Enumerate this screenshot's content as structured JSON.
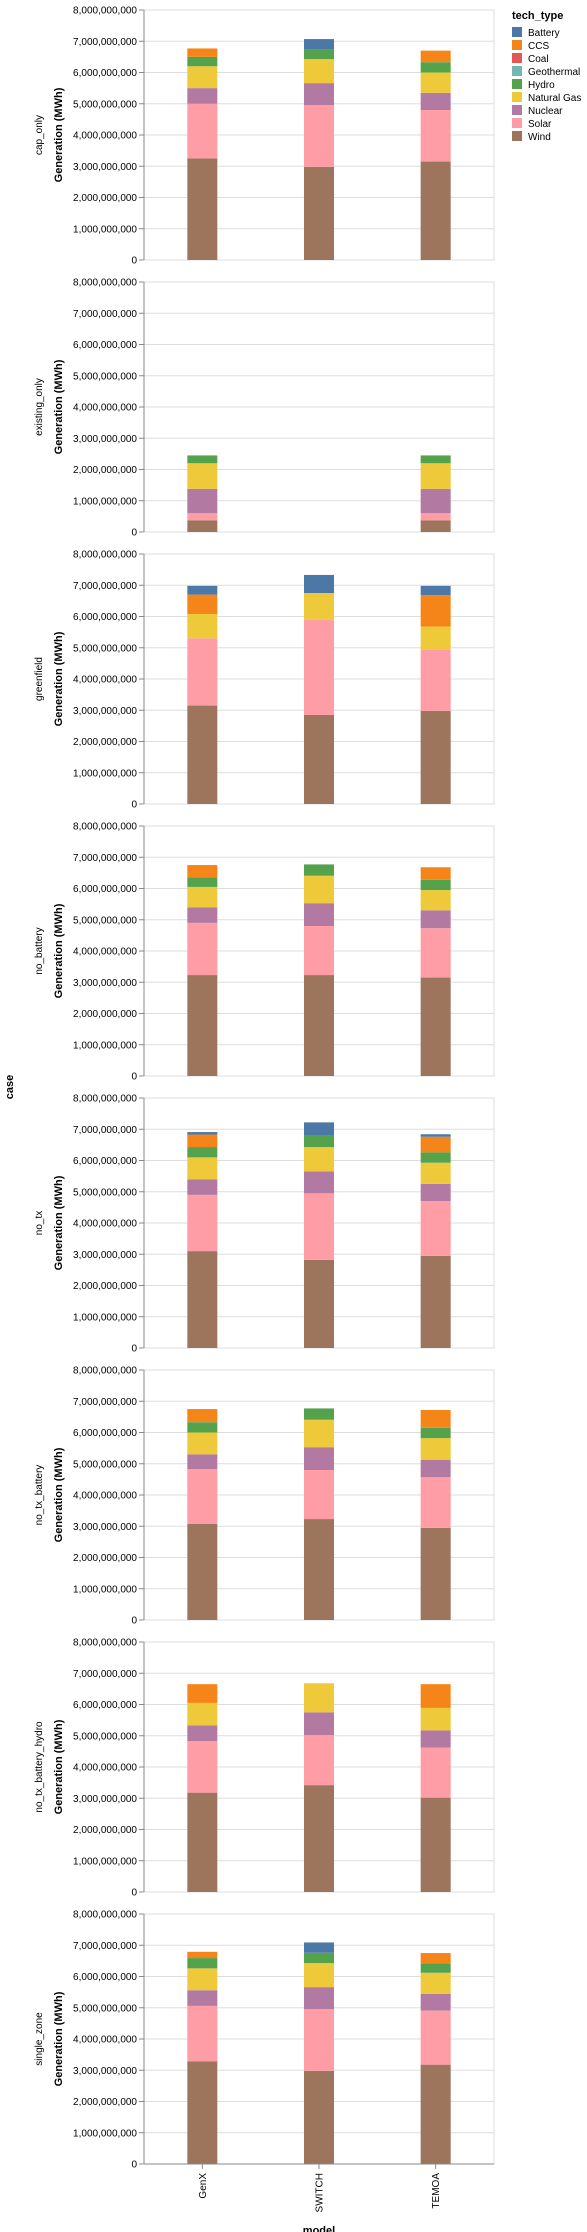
{
  "chart_data": {
    "type": "bar",
    "stacked": true,
    "facet_title": "case",
    "x_title": "model",
    "y_title": "Generation (MWh)",
    "models": [
      "GenX",
      "SWITCH",
      "TEMOA"
    ],
    "ylim": [
      0,
      8000000000
    ],
    "y_ticks": [
      0,
      1000000000,
      2000000000,
      3000000000,
      4000000000,
      5000000000,
      6000000000,
      7000000000,
      8000000000
    ],
    "y_tick_labels": [
      "0",
      "1,000,000,000",
      "2,000,000,000",
      "3,000,000,000",
      "4,000,000,000",
      "5,000,000,000",
      "6,000,000,000",
      "7,000,000,000",
      "8,000,000,000"
    ],
    "grid": true,
    "legend": {
      "title": "tech_type",
      "position": "top-right",
      "items": [
        {
          "name": "Battery",
          "color": "#4c78a8"
        },
        {
          "name": "CCS",
          "color": "#f58518"
        },
        {
          "name": "Coal",
          "color": "#e45756"
        },
        {
          "name": "Geothermal",
          "color": "#72b7b2"
        },
        {
          "name": "Hydro",
          "color": "#54a24b"
        },
        {
          "name": "Natural Gas",
          "color": "#eeca3b"
        },
        {
          "name": "Nuclear",
          "color": "#b279a2"
        },
        {
          "name": "Solar",
          "color": "#ff9da6"
        },
        {
          "name": "Wind",
          "color": "#9d755d"
        }
      ]
    },
    "stack_order": [
      "Wind",
      "Solar",
      "Nuclear",
      "Natural Gas",
      "Geothermal",
      "Hydro",
      "Coal",
      "CCS",
      "Battery"
    ],
    "facets": [
      {
        "case": "cap_only",
        "bars": [
          {
            "model": "GenX",
            "values": {
              "Wind": 3250000000,
              "Solar": 1750000000,
              "Nuclear": 500000000,
              "Natural Gas": 700000000,
              "Hydro": 300000000,
              "CCS": 270000000,
              "Battery": 0
            }
          },
          {
            "model": "SWITCH",
            "values": {
              "Wind": 2980000000,
              "Solar": 1980000000,
              "Nuclear": 700000000,
              "Natural Gas": 770000000,
              "Hydro": 320000000,
              "CCS": 0,
              "Battery": 320000000
            }
          },
          {
            "model": "TEMOA",
            "values": {
              "Wind": 3150000000,
              "Solar": 1650000000,
              "Nuclear": 550000000,
              "Natural Gas": 650000000,
              "Hydro": 330000000,
              "CCS": 370000000,
              "Battery": 0
            }
          }
        ]
      },
      {
        "case": "existing_only",
        "bars": [
          {
            "model": "GenX",
            "values": {
              "Wind": 370000000,
              "Solar": 230000000,
              "Nuclear": 780000000,
              "Natural Gas": 820000000,
              "Hydro": 250000000,
              "CCS": 0,
              "Battery": 0
            }
          },
          {
            "model": "SWITCH",
            "values": {}
          },
          {
            "model": "TEMOA",
            "values": {
              "Wind": 370000000,
              "Solar": 230000000,
              "Nuclear": 780000000,
              "Natural Gas": 820000000,
              "Hydro": 250000000,
              "CCS": 0,
              "Battery": 0
            }
          }
        ]
      },
      {
        "case": "greenfield",
        "bars": [
          {
            "model": "GenX",
            "values": {
              "Wind": 3150000000,
              "Solar": 2150000000,
              "Nuclear": 0,
              "Natural Gas": 780000000,
              "Hydro": 0,
              "CCS": 620000000,
              "Battery": 280000000
            }
          },
          {
            "model": "SWITCH",
            "values": {
              "Wind": 2850000000,
              "Solar": 3050000000,
              "Nuclear": 0,
              "Natural Gas": 850000000,
              "Hydro": 0,
              "CCS": 0,
              "Battery": 580000000
            }
          },
          {
            "model": "TEMOA",
            "values": {
              "Wind": 2980000000,
              "Solar": 1950000000,
              "Nuclear": 0,
              "Natural Gas": 750000000,
              "Hydro": 0,
              "CCS": 1000000000,
              "Battery": 300000000
            }
          }
        ]
      },
      {
        "case": "no_battery",
        "bars": [
          {
            "model": "GenX",
            "values": {
              "Wind": 3230000000,
              "Solar": 1670000000,
              "Nuclear": 500000000,
              "Natural Gas": 650000000,
              "Hydro": 300000000,
              "CCS": 400000000,
              "Battery": 0
            }
          },
          {
            "model": "SWITCH",
            "values": {
              "Wind": 3230000000,
              "Solar": 1570000000,
              "Nuclear": 730000000,
              "Natural Gas": 880000000,
              "Hydro": 360000000,
              "CCS": 0,
              "Battery": 0
            }
          },
          {
            "model": "TEMOA",
            "values": {
              "Wind": 3150000000,
              "Solar": 1580000000,
              "Nuclear": 570000000,
              "Natural Gas": 650000000,
              "Hydro": 330000000,
              "CCS": 400000000,
              "Battery": 0
            }
          }
        ]
      },
      {
        "case": "no_tx",
        "bars": [
          {
            "model": "GenX",
            "values": {
              "Wind": 3100000000,
              "Solar": 1800000000,
              "Nuclear": 500000000,
              "Natural Gas": 700000000,
              "Hydro": 330000000,
              "CCS": 400000000,
              "Battery": 80000000
            }
          },
          {
            "model": "SWITCH",
            "values": {
              "Wind": 2820000000,
              "Solar": 2130000000,
              "Nuclear": 700000000,
              "Natural Gas": 780000000,
              "Hydro": 360000000,
              "CCS": 0,
              "Battery": 430000000
            }
          },
          {
            "model": "TEMOA",
            "values": {
              "Wind": 2950000000,
              "Solar": 1750000000,
              "Nuclear": 550000000,
              "Natural Gas": 680000000,
              "Hydro": 330000000,
              "CCS": 500000000,
              "Battery": 80000000
            }
          }
        ]
      },
      {
        "case": "no_tx_battery",
        "bars": [
          {
            "model": "GenX",
            "values": {
              "Wind": 3080000000,
              "Solar": 1750000000,
              "Nuclear": 470000000,
              "Natural Gas": 700000000,
              "Hydro": 330000000,
              "CCS": 420000000,
              "Battery": 0
            }
          },
          {
            "model": "SWITCH",
            "values": {
              "Wind": 3230000000,
              "Solar": 1570000000,
              "Nuclear": 730000000,
              "Natural Gas": 880000000,
              "Hydro": 360000000,
              "CCS": 0,
              "Battery": 0
            }
          },
          {
            "model": "TEMOA",
            "values": {
              "Wind": 2950000000,
              "Solar": 1620000000,
              "Nuclear": 550000000,
              "Natural Gas": 700000000,
              "Hydro": 330000000,
              "CCS": 570000000,
              "Battery": 0
            }
          }
        ]
      },
      {
        "case": "no_tx_battery_hydro",
        "bars": [
          {
            "model": "GenX",
            "values": {
              "Wind": 3180000000,
              "Solar": 1650000000,
              "Nuclear": 500000000,
              "Natural Gas": 720000000,
              "Hydro": 0,
              "CCS": 600000000,
              "Battery": 0
            }
          },
          {
            "model": "SWITCH",
            "values": {
              "Wind": 3420000000,
              "Solar": 1600000000,
              "Nuclear": 730000000,
              "Natural Gas": 930000000,
              "Hydro": 0,
              "CCS": 0,
              "Battery": 0
            }
          },
          {
            "model": "TEMOA",
            "values": {
              "Wind": 3020000000,
              "Solar": 1600000000,
              "Nuclear": 550000000,
              "Natural Gas": 720000000,
              "Hydro": 0,
              "CCS": 760000000,
              "Battery": 0
            }
          }
        ]
      },
      {
        "case": "single_zone",
        "bars": [
          {
            "model": "GenX",
            "values": {
              "Wind": 3280000000,
              "Solar": 1780000000,
              "Nuclear": 500000000,
              "Natural Gas": 700000000,
              "Hydro": 330000000,
              "CCS": 200000000,
              "Battery": 0
            }
          },
          {
            "model": "SWITCH",
            "values": {
              "Wind": 2980000000,
              "Solar": 1980000000,
              "Nuclear": 700000000,
              "Natural Gas": 770000000,
              "Hydro": 330000000,
              "CCS": 0,
              "Battery": 330000000
            }
          },
          {
            "model": "TEMOA",
            "values": {
              "Wind": 3180000000,
              "Solar": 1730000000,
              "Nuclear": 530000000,
              "Natural Gas": 680000000,
              "Hydro": 300000000,
              "CCS": 330000000,
              "Battery": 0
            }
          }
        ]
      }
    ]
  }
}
